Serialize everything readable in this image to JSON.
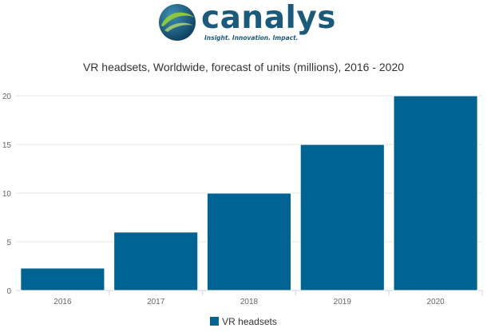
{
  "logo": {
    "wordmark": "canalys",
    "tagline": "Insight. Innovation. Impact."
  },
  "colors": {
    "bar": "#006391",
    "brand": "#1b5a7a",
    "globe_green": "#8dc63f",
    "grid": "#e6e6e6"
  },
  "chart_data": {
    "type": "bar",
    "title": "VR headsets, Worldwide, forecast of units (millions), 2016 - 2020",
    "categories": [
      "2016",
      "2017",
      "2018",
      "2019",
      "2020"
    ],
    "series": [
      {
        "name": "VR headsets",
        "values": [
          2.3,
          6,
          10,
          15,
          20
        ]
      }
    ],
    "yticks": [
      "0",
      "5",
      "10",
      "15",
      "20"
    ],
    "ylim": [
      0,
      20
    ],
    "xlabel": "",
    "ylabel": "",
    "grid": true,
    "legend": "bottom-center"
  }
}
